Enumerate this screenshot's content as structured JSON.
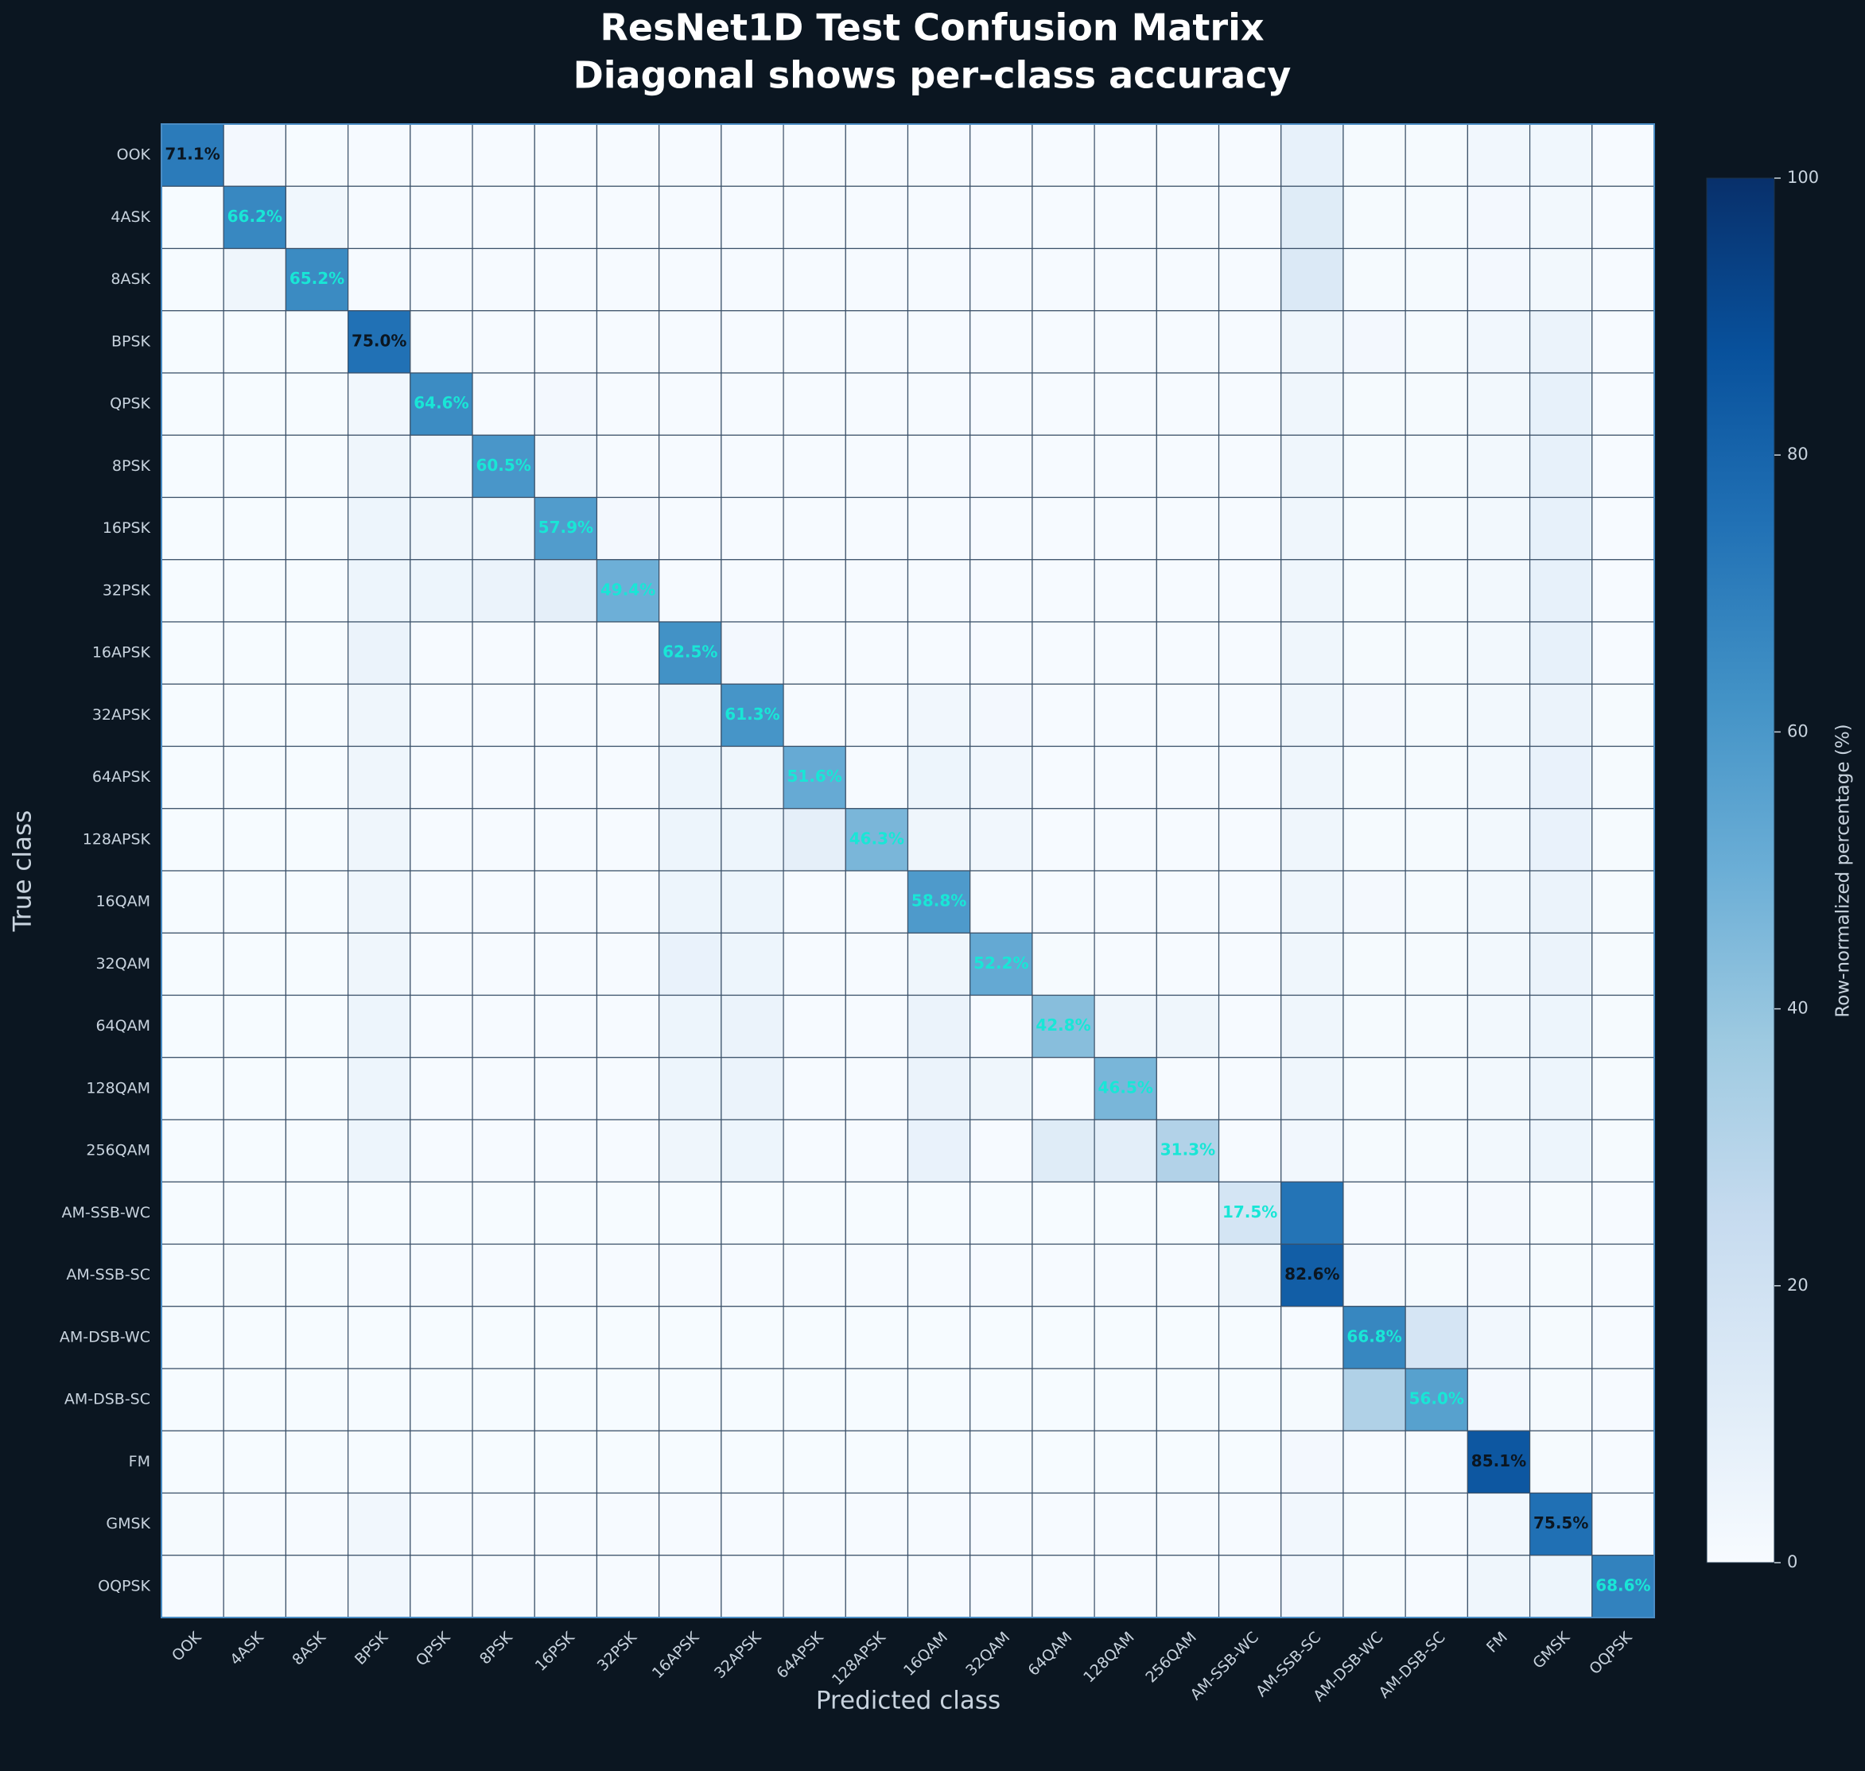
{
  "chart_data": {
    "type": "heatmap",
    "title": "ResNet1D Test Confusion Matrix",
    "subtitle": "Diagonal shows per-class accuracy",
    "xlabel": "Predicted class",
    "ylabel": "True class",
    "colorbar_label": "Row-normalized percentage (%)",
    "cmap": "Blues",
    "zlim": [
      0,
      100
    ],
    "zticks": [
      0,
      20,
      40,
      60,
      80,
      100
    ],
    "categories": [
      "OOK",
      "4ASK",
      "8ASK",
      "BPSK",
      "QPSK",
      "8PSK",
      "16PSK",
      "32PSK",
      "16APSK",
      "32APSK",
      "64APSK",
      "128APSK",
      "16QAM",
      "32QAM",
      "64QAM",
      "128QAM",
      "256QAM",
      "AM-SSB-WC",
      "AM-SSB-SC",
      "AM-DSB-WC",
      "AM-DSB-SC",
      "FM",
      "GMSK",
      "OQPSK"
    ],
    "values": [
      [
        71.1,
        2.0,
        0.3,
        0.5,
        0.5,
        0.5,
        0.5,
        0.5,
        0.5,
        0.5,
        0.5,
        0.5,
        0.5,
        0.5,
        0.5,
        0.5,
        0.5,
        0.5,
        8.0,
        1.0,
        1.0,
        3.0,
        3.5,
        0.5
      ],
      [
        0.3,
        66.2,
        3.5,
        0.5,
        0.5,
        0.5,
        0.5,
        0.5,
        0.5,
        0.5,
        0.5,
        0.5,
        0.5,
        0.5,
        0.5,
        0.5,
        0.5,
        0.5,
        12.0,
        1.0,
        1.0,
        2.0,
        2.5,
        0.5
      ],
      [
        0.3,
        4.0,
        65.2,
        0.5,
        0.5,
        0.5,
        0.5,
        0.5,
        0.5,
        0.5,
        0.5,
        0.5,
        0.5,
        0.5,
        0.5,
        0.5,
        0.5,
        0.5,
        14.0,
        1.0,
        1.0,
        2.0,
        2.5,
        0.5
      ],
      [
        0.3,
        0.3,
        0.3,
        75.0,
        0.5,
        0.5,
        0.5,
        0.5,
        0.5,
        0.5,
        0.5,
        0.5,
        0.5,
        0.5,
        0.5,
        0.5,
        0.5,
        0.5,
        4.0,
        2.0,
        1.0,
        3.0,
        6.0,
        0.5
      ],
      [
        0.3,
        0.3,
        0.3,
        3.0,
        64.6,
        0.5,
        2.0,
        0.5,
        0.5,
        0.5,
        0.5,
        0.5,
        0.5,
        0.5,
        0.5,
        0.5,
        0.5,
        0.5,
        4.0,
        1.0,
        1.0,
        2.5,
        8.0,
        0.5
      ],
      [
        0.3,
        0.3,
        0.3,
        4.0,
        3.0,
        60.5,
        3.0,
        0.5,
        0.5,
        0.5,
        0.5,
        0.5,
        0.5,
        0.5,
        0.5,
        0.5,
        0.5,
        0.5,
        4.0,
        1.0,
        1.0,
        2.5,
        8.0,
        0.5
      ],
      [
        0.3,
        0.3,
        0.3,
        5.0,
        4.0,
        4.0,
        57.9,
        2.0,
        0.5,
        0.5,
        0.5,
        0.5,
        0.5,
        0.5,
        0.5,
        0.5,
        0.5,
        0.5,
        4.0,
        1.0,
        1.0,
        2.5,
        8.0,
        0.5
      ],
      [
        0.3,
        0.3,
        0.3,
        5.0,
        5.0,
        6.0,
        9.0,
        49.4,
        0.5,
        0.5,
        0.5,
        0.5,
        0.5,
        0.5,
        0.5,
        0.5,
        0.5,
        0.5,
        4.0,
        1.0,
        1.0,
        2.5,
        8.0,
        0.5
      ],
      [
        0.3,
        0.3,
        0.3,
        6.0,
        0.5,
        0.5,
        0.5,
        0.5,
        62.5,
        2.0,
        0.5,
        0.5,
        0.5,
        0.5,
        0.5,
        0.5,
        0.5,
        0.5,
        4.0,
        1.0,
        1.0,
        2.5,
        8.0,
        0.5
      ],
      [
        0.3,
        0.3,
        0.3,
        4.0,
        0.5,
        0.5,
        0.5,
        0.5,
        4.0,
        61.3,
        0.5,
        0.5,
        3.0,
        2.0,
        0.5,
        0.5,
        0.5,
        0.5,
        4.0,
        1.5,
        1.0,
        2.5,
        6.0,
        1.0
      ],
      [
        0.3,
        0.3,
        0.3,
        4.0,
        0.5,
        0.5,
        0.5,
        0.5,
        5.0,
        4.0,
        51.6,
        0.5,
        5.0,
        3.0,
        0.5,
        0.5,
        0.5,
        0.5,
        4.0,
        1.0,
        1.0,
        2.5,
        7.0,
        1.0
      ],
      [
        0.3,
        0.3,
        0.3,
        4.0,
        0.5,
        0.5,
        0.5,
        0.5,
        5.0,
        5.0,
        9.0,
        46.3,
        4.0,
        3.0,
        0.5,
        0.5,
        0.5,
        0.5,
        4.0,
        1.0,
        1.0,
        2.5,
        7.0,
        1.0
      ],
      [
        0.3,
        0.3,
        0.3,
        4.0,
        0.5,
        0.5,
        0.5,
        0.5,
        5.0,
        5.0,
        0.5,
        0.5,
        58.8,
        0.5,
        0.5,
        0.5,
        0.5,
        0.5,
        4.0,
        1.5,
        1.0,
        2.5,
        6.0,
        1.0
      ],
      [
        0.3,
        0.3,
        0.3,
        4.0,
        0.5,
        0.5,
        0.5,
        0.5,
        7.0,
        5.0,
        0.5,
        0.5,
        4.0,
        52.2,
        1.0,
        0.5,
        0.5,
        0.5,
        4.0,
        1.0,
        1.0,
        2.5,
        6.0,
        1.0
      ],
      [
        0.3,
        0.3,
        0.3,
        5.0,
        0.5,
        0.5,
        0.5,
        0.5,
        5.0,
        6.0,
        0.5,
        0.5,
        6.0,
        0.5,
        42.8,
        4.0,
        4.0,
        0.5,
        4.0,
        1.0,
        1.0,
        2.5,
        5.0,
        1.0
      ],
      [
        0.3,
        0.3,
        0.3,
        5.0,
        0.5,
        0.5,
        0.5,
        0.5,
        5.0,
        6.0,
        0.5,
        0.5,
        6.0,
        4.0,
        0.5,
        46.5,
        0.5,
        0.5,
        4.0,
        1.0,
        1.0,
        2.5,
        5.0,
        1.0
      ],
      [
        0.3,
        0.3,
        0.3,
        5.0,
        0.5,
        0.5,
        0.5,
        0.5,
        4.0,
        5.0,
        0.5,
        0.5,
        7.0,
        0.5,
        12.0,
        10.0,
        31.3,
        0.5,
        3.0,
        1.0,
        1.0,
        2.5,
        5.0,
        1.0
      ],
      [
        0.3,
        0.3,
        0.3,
        0.3,
        0.3,
        0.3,
        0.3,
        0.3,
        0.3,
        0.3,
        0.3,
        0.3,
        0.3,
        0.3,
        0.3,
        0.3,
        0.3,
        17.5,
        74.0,
        0.5,
        0.5,
        1.5,
        1.0,
        0.5
      ],
      [
        0.3,
        1.0,
        0.3,
        0.5,
        0.5,
        0.5,
        0.5,
        0.5,
        0.5,
        0.5,
        0.5,
        0.5,
        0.5,
        0.5,
        0.5,
        0.5,
        0.5,
        4.0,
        82.6,
        1.5,
        1.0,
        1.5,
        1.0,
        0.5
      ],
      [
        0.3,
        0.3,
        0.3,
        0.3,
        0.3,
        0.3,
        0.3,
        0.3,
        0.3,
        0.3,
        0.3,
        0.3,
        0.3,
        0.3,
        0.3,
        0.3,
        0.3,
        0.3,
        0.5,
        66.8,
        17.0,
        3.0,
        1.0,
        0.5
      ],
      [
        0.3,
        0.3,
        0.3,
        0.3,
        0.3,
        0.3,
        0.3,
        0.3,
        0.3,
        0.3,
        0.3,
        0.3,
        0.3,
        0.3,
        0.3,
        0.3,
        0.3,
        0.3,
        1.0,
        32.0,
        56.0,
        2.0,
        1.0,
        0.5
      ],
      [
        0.3,
        0.3,
        0.3,
        0.3,
        0.3,
        0.3,
        0.3,
        0.3,
        0.3,
        0.3,
        0.3,
        0.3,
        0.3,
        0.3,
        0.3,
        0.3,
        0.3,
        0.3,
        2.0,
        0.5,
        0.5,
        85.1,
        1.0,
        0.5
      ],
      [
        1.0,
        0.5,
        0.5,
        3.0,
        0.5,
        0.5,
        0.5,
        0.5,
        0.5,
        0.5,
        0.5,
        0.5,
        0.5,
        0.5,
        0.5,
        0.5,
        0.5,
        0.5,
        3.0,
        1.0,
        0.5,
        3.0,
        75.5,
        0.5
      ],
      [
        0.5,
        1.0,
        0.5,
        3.0,
        0.5,
        0.5,
        0.5,
        0.5,
        0.5,
        0.5,
        0.5,
        0.5,
        0.5,
        0.5,
        0.5,
        0.5,
        0.5,
        0.5,
        3.0,
        1.0,
        0.5,
        4.0,
        5.0,
        68.6
      ]
    ],
    "value_labels": [
      [
        "71.1%",
        null,
        null,
        null,
        null,
        null,
        null,
        null,
        null,
        null,
        null,
        null,
        null,
        null,
        null,
        null,
        null,
        null,
        null,
        null,
        null,
        null,
        null,
        null
      ],
      [
        null,
        "66.2%",
        null,
        null,
        null,
        null,
        null,
        null,
        null,
        null,
        null,
        null,
        null,
        null,
        null,
        null,
        null,
        null,
        null,
        null,
        null,
        null,
        null,
        null
      ],
      [
        null,
        null,
        "65.2%",
        null,
        null,
        null,
        null,
        null,
        null,
        null,
        null,
        null,
        null,
        null,
        null,
        null,
        null,
        null,
        null,
        null,
        null,
        null,
        null,
        null
      ],
      [
        null,
        null,
        null,
        "75.0%",
        null,
        null,
        null,
        null,
        null,
        null,
        null,
        null,
        null,
        null,
        null,
        null,
        null,
        null,
        null,
        null,
        null,
        null,
        null,
        null
      ],
      [
        null,
        null,
        null,
        null,
        "64.6%",
        null,
        null,
        null,
        null,
        null,
        null,
        null,
        null,
        null,
        null,
        null,
        null,
        null,
        null,
        null,
        null,
        null,
        null,
        null
      ],
      [
        null,
        null,
        null,
        null,
        null,
        "60.5%",
        null,
        null,
        null,
        null,
        null,
        null,
        null,
        null,
        null,
        null,
        null,
        null,
        null,
        null,
        null,
        null,
        null,
        null
      ],
      [
        null,
        null,
        null,
        null,
        null,
        null,
        "57.9%",
        null,
        null,
        null,
        null,
        null,
        null,
        null,
        null,
        null,
        null,
        null,
        null,
        null,
        null,
        null,
        null,
        null
      ],
      [
        null,
        null,
        null,
        null,
        null,
        null,
        null,
        "49.4%",
        null,
        null,
        null,
        null,
        null,
        null,
        null,
        null,
        null,
        null,
        null,
        null,
        null,
        null,
        null,
        null
      ],
      [
        null,
        null,
        null,
        null,
        null,
        null,
        null,
        null,
        "62.5%",
        null,
        null,
        null,
        null,
        null,
        null,
        null,
        null,
        null,
        null,
        null,
        null,
        null,
        null,
        null
      ],
      [
        null,
        null,
        null,
        null,
        null,
        null,
        null,
        null,
        null,
        "61.3%",
        null,
        null,
        null,
        null,
        null,
        null,
        null,
        null,
        null,
        null,
        null,
        null,
        null,
        null
      ],
      [
        null,
        null,
        null,
        null,
        null,
        null,
        null,
        null,
        null,
        null,
        "51.6%",
        null,
        null,
        null,
        null,
        null,
        null,
        null,
        null,
        null,
        null,
        null,
        null,
        null
      ],
      [
        null,
        null,
        null,
        null,
        null,
        null,
        null,
        null,
        null,
        null,
        null,
        "46.3%",
        null,
        null,
        null,
        null,
        null,
        null,
        null,
        null,
        null,
        null,
        null,
        null
      ],
      [
        null,
        null,
        null,
        null,
        null,
        null,
        null,
        null,
        null,
        null,
        null,
        null,
        "58.8%",
        null,
        null,
        null,
        null,
        null,
        null,
        null,
        null,
        null,
        null,
        null
      ],
      [
        null,
        null,
        null,
        null,
        null,
        null,
        null,
        null,
        null,
        null,
        null,
        null,
        null,
        "52.2%",
        null,
        null,
        null,
        null,
        null,
        null,
        null,
        null,
        null,
        null
      ],
      [
        null,
        null,
        null,
        null,
        null,
        null,
        null,
        null,
        null,
        null,
        null,
        null,
        null,
        null,
        "42.8%",
        null,
        null,
        null,
        null,
        null,
        null,
        null,
        null,
        null
      ],
      [
        null,
        null,
        null,
        null,
        null,
        null,
        null,
        null,
        null,
        null,
        null,
        null,
        null,
        null,
        null,
        "46.5%",
        null,
        null,
        null,
        null,
        null,
        null,
        null,
        null
      ],
      [
        null,
        null,
        null,
        null,
        null,
        null,
        null,
        null,
        null,
        null,
        null,
        null,
        null,
        null,
        null,
        null,
        "31.3%",
        null,
        null,
        null,
        null,
        null,
        null,
        null
      ],
      [
        null,
        null,
        null,
        null,
        null,
        null,
        null,
        null,
        null,
        null,
        null,
        null,
        null,
        null,
        null,
        null,
        null,
        "17.5%",
        null,
        null,
        null,
        null,
        null,
        null
      ],
      [
        null,
        null,
        null,
        null,
        null,
        null,
        null,
        null,
        null,
        null,
        null,
        null,
        null,
        null,
        null,
        null,
        null,
        null,
        "82.6%",
        null,
        null,
        null,
        null,
        null
      ],
      [
        null,
        null,
        null,
        null,
        null,
        null,
        null,
        null,
        null,
        null,
        null,
        null,
        null,
        null,
        null,
        null,
        null,
        null,
        null,
        "66.8%",
        null,
        null,
        null,
        null
      ],
      [
        null,
        null,
        null,
        null,
        null,
        null,
        null,
        null,
        null,
        null,
        null,
        null,
        null,
        null,
        null,
        null,
        null,
        null,
        null,
        null,
        "56.0%",
        null,
        null,
        null
      ],
      [
        null,
        null,
        null,
        null,
        null,
        null,
        null,
        null,
        null,
        null,
        null,
        null,
        null,
        null,
        null,
        null,
        null,
        null,
        null,
        null,
        null,
        "85.1%",
        null,
        null
      ],
      [
        null,
        null,
        null,
        null,
        null,
        null,
        null,
        null,
        null,
        null,
        null,
        null,
        null,
        null,
        null,
        null,
        null,
        null,
        null,
        null,
        null,
        null,
        "75.5%",
        null
      ],
      [
        null,
        null,
        null,
        null,
        null,
        null,
        null,
        null,
        null,
        null,
        null,
        null,
        null,
        null,
        null,
        null,
        null,
        null,
        null,
        null,
        null,
        null,
        null,
        "68.6%"
      ]
    ]
  }
}
